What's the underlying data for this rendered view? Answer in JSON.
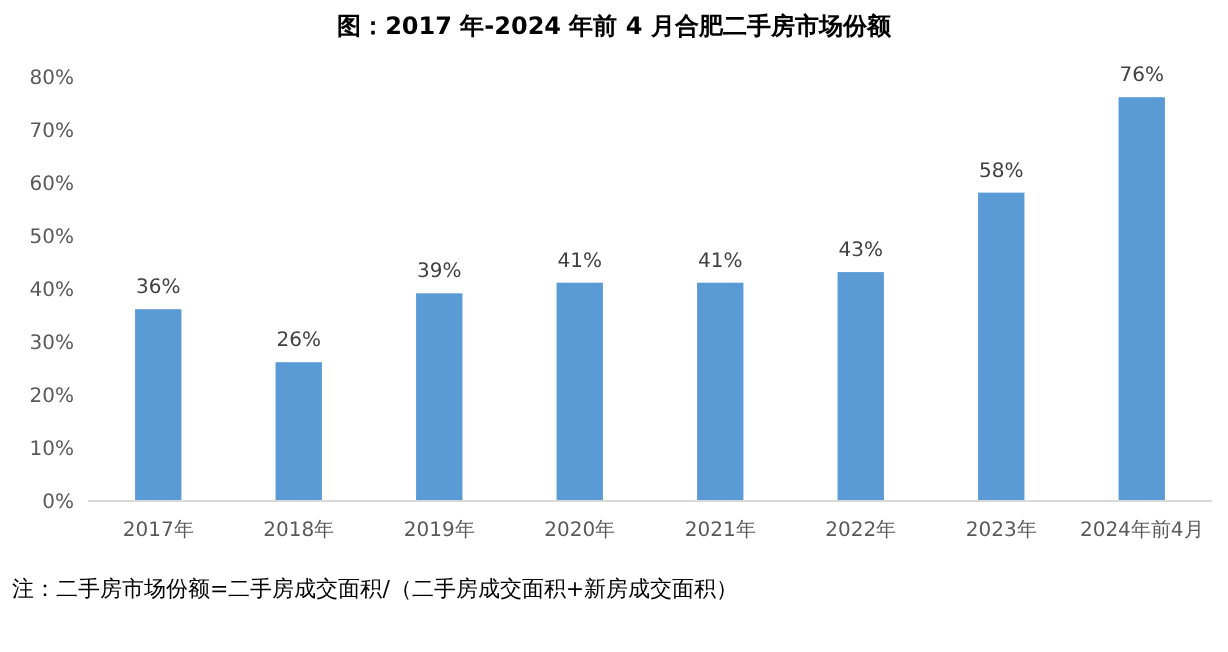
{
  "chart_data": {
    "type": "bar",
    "title": "图：2017 年-2024 年前 4 月合肥二手房市场份额",
    "categories": [
      "2017年",
      "2018年",
      "2019年",
      "2020年",
      "2021年",
      "2022年",
      "2023年",
      "2024年前4月"
    ],
    "values": [
      36,
      26,
      39,
      41,
      41,
      43,
      58,
      76
    ],
    "value_labels": [
      "36%",
      "26%",
      "39%",
      "41%",
      "41%",
      "43%",
      "58%",
      "76%"
    ],
    "color": "#5b9bd5",
    "ylim": [
      0,
      80
    ],
    "yticks": [
      {
        "value": 0,
        "label": "0%"
      },
      {
        "value": 10,
        "label": "10%"
      },
      {
        "value": 20,
        "label": "20%"
      },
      {
        "value": 30,
        "label": "30%"
      },
      {
        "value": 40,
        "label": "40%"
      },
      {
        "value": 50,
        "label": "50%"
      },
      {
        "value": 60,
        "label": "60%"
      },
      {
        "value": 70,
        "label": "70%"
      },
      {
        "value": 80,
        "label": "80%"
      }
    ],
    "grid": false,
    "annotations": [
      "注：二手房市场份额=二手房成交面积/（二手房成交面积+新房成交面积）"
    ]
  }
}
